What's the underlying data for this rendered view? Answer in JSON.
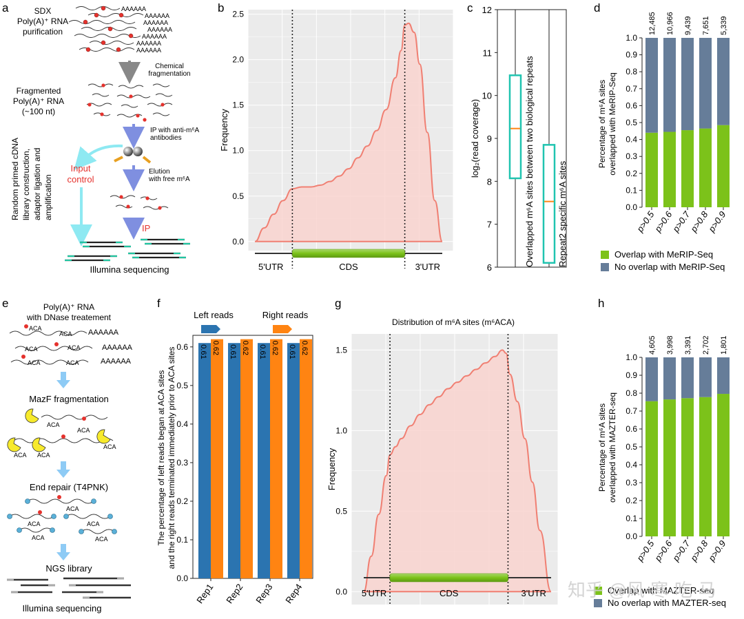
{
  "panel_letters": [
    "a",
    "b",
    "c",
    "d",
    "e",
    "f",
    "g",
    "h"
  ],
  "colors": {
    "green": "#7cc21a",
    "slate": "#667d99",
    "blue": "#2b74b0",
    "orange": "#ff8412",
    "salmon": "#f07f72",
    "salmon_fill": "#f9d4cf",
    "teal": "#20c4b0",
    "cyan": "#8ee9f2",
    "arrow_blue": "#7f8fe0",
    "arrow_gray": "#888888",
    "red_text": "#e5322d",
    "plot_bg": "#ebebeb"
  },
  "panel_a": {
    "title": [
      "SDX",
      "Poly(A)⁺ RNA",
      "purification"
    ],
    "polyA": "AAAAAA",
    "step_chem": [
      "Chemical",
      "fragmentation"
    ],
    "fragmented": [
      "Fragmented",
      "Poly(A)⁺ RNA",
      "(~100 nt)"
    ],
    "ip_step": [
      "IP with anti-m⁶A",
      "antibodies"
    ],
    "input_control": [
      "Input",
      "control"
    ],
    "elution": [
      "Elution",
      "with free m⁶A"
    ],
    "ip": "IP",
    "side_label": [
      "Random primed cDNA",
      "library construction,",
      "adaptor ligation and",
      "amplification"
    ],
    "illumina": "Illumina sequencing"
  },
  "panel_b": {
    "chart_data": {
      "type": "area",
      "ylabel": "Frequency",
      "yticks": [
        "0.0",
        "0.5",
        "1.0",
        "1.5",
        "2.0",
        "2.5"
      ],
      "ylim": [
        -0.1,
        2.55
      ],
      "region_labels": [
        "5'UTR",
        "CDS",
        "3'UTR"
      ],
      "boundaries": [
        0.2,
        0.8
      ],
      "x": [
        0.0,
        0.05,
        0.1,
        0.15,
        0.2,
        0.25,
        0.3,
        0.35,
        0.4,
        0.45,
        0.5,
        0.55,
        0.6,
        0.65,
        0.7,
        0.75,
        0.78,
        0.8,
        0.82,
        0.85,
        0.88,
        0.92,
        0.96,
        1.0
      ],
      "y": [
        0.0,
        0.15,
        0.3,
        0.45,
        0.58,
        0.6,
        0.6,
        0.62,
        0.66,
        0.72,
        0.8,
        0.92,
        1.05,
        1.22,
        1.45,
        1.8,
        2.1,
        2.38,
        2.4,
        2.3,
        1.95,
        1.2,
        0.45,
        0.0
      ]
    }
  },
  "panel_c": {
    "chart_data": {
      "type": "box",
      "ylabel": "log₂(read coverage)",
      "ylim": [
        6,
        12
      ],
      "yticks": [
        "6",
        "7",
        "8",
        "9",
        "10",
        "11",
        "12"
      ],
      "categories": [
        "Overlapped m⁶A sites between two biological repeats",
        "Repeat2 specific m⁶A sites"
      ],
      "boxes": [
        {
          "q1": 8.07,
          "median": 9.23,
          "q3": 10.47
        },
        {
          "q1": 6.1,
          "median": 7.53,
          "q3": 8.85
        }
      ]
    }
  },
  "panel_d": {
    "chart_data": {
      "type": "bar",
      "ylabel": [
        "Percentage of  m⁶A sites",
        "overlapped with MeRIP-Seq"
      ],
      "ylim": [
        0,
        1.0
      ],
      "yticks": [
        "0.0",
        "0.1",
        "0.2",
        "0.3",
        "0.4",
        "0.5",
        "0.6",
        "0.7",
        "0.8",
        "0.9",
        "1.0"
      ],
      "categories": [
        "p>0.5",
        "p>0.6",
        "p>0.7",
        "p>0.8",
        "p>0.9"
      ],
      "top_labels": [
        "12,485",
        "10,966",
        "9,439",
        "7,651",
        "5,339"
      ],
      "series": [
        {
          "name": "Overlap with MeRIP-Seq",
          "values": [
            0.44,
            0.445,
            0.455,
            0.465,
            0.485
          ]
        },
        {
          "name": "No overlap with MeRIP-Seq",
          "values": [
            0.56,
            0.555,
            0.545,
            0.535,
            0.515
          ]
        }
      ]
    }
  },
  "panel_e": {
    "title": [
      "Poly(A)⁺ RNA",
      "with DNase treatement"
    ],
    "polyA": "AAAAAA",
    "aca": "ACA",
    "step_mazf": "MazF fragmentation",
    "step_repair": "End repair (T4PNK)",
    "step_ngs": "NGS library",
    "illumina": "Illumina sequencing"
  },
  "panel_f": {
    "legend": [
      "Left reads",
      "Right reads"
    ],
    "chart_data": {
      "type": "bar",
      "ylabel": [
        "The percentage of left reads began at ACA sites",
        "and the right reads terminated immediately prior to ACA sites"
      ],
      "ylim": [
        0,
        0.63
      ],
      "yticks": [
        "0.0",
        "0.1",
        "0.2",
        "0.3",
        "0.4",
        "0.5",
        "0.6"
      ],
      "categories": [
        "Rep1",
        "Rep2",
        "Rep3",
        "Rep4"
      ],
      "series": [
        {
          "name": "Left reads",
          "values": [
            0.61,
            0.61,
            0.61,
            0.61
          ],
          "labels": [
            "0.61",
            "0.61",
            "0.61",
            "0.61"
          ]
        },
        {
          "name": "Right reads",
          "values": [
            0.62,
            0.62,
            0.62,
            0.62
          ],
          "labels": [
            "0.62",
            "0.62",
            "0.62",
            "0.62"
          ]
        }
      ]
    }
  },
  "panel_g": {
    "chart_data": {
      "type": "area",
      "title": "Distribution of m⁶A sites (m⁶ACA)",
      "ylabel": "Frequency",
      "yticks": [
        "0.0",
        "0.5",
        "1.0",
        "1.5"
      ],
      "ylim": [
        -0.08,
        1.6
      ],
      "region_labels": [
        "5'UTR",
        "CDS",
        "3'UTR"
      ],
      "boundaries": [
        0.14,
        0.77
      ],
      "x": [
        0.0,
        0.04,
        0.08,
        0.12,
        0.14,
        0.17,
        0.2,
        0.25,
        0.3,
        0.35,
        0.4,
        0.45,
        0.5,
        0.55,
        0.6,
        0.65,
        0.7,
        0.74,
        0.76,
        0.78,
        0.82,
        0.86,
        0.9,
        0.94,
        1.0
      ],
      "y": [
        0.0,
        0.22,
        0.48,
        0.72,
        0.85,
        0.9,
        0.95,
        1.03,
        1.1,
        1.16,
        1.21,
        1.26,
        1.3,
        1.34,
        1.38,
        1.42,
        1.46,
        1.5,
        1.48,
        1.35,
        1.18,
        0.95,
        0.68,
        0.38,
        0.0
      ]
    }
  },
  "panel_h": {
    "chart_data": {
      "type": "bar",
      "ylabel": [
        "Percentage of  m⁶A sites",
        "overlapped with MAZTER-seq"
      ],
      "ylim": [
        0,
        1.0
      ],
      "yticks": [
        "0.0",
        "0.1",
        "0.2",
        "0.3",
        "0.4",
        "0.5",
        "0.6",
        "0.7",
        "0.8",
        "0.9",
        "1.0"
      ],
      "categories": [
        "p>0.5",
        "p>0.6",
        "p>0.7",
        "p>0.8",
        "p>0.9"
      ],
      "top_labels": [
        "4,605",
        "3,998",
        "3,391",
        "2,702",
        "1,801"
      ],
      "series": [
        {
          "name": "Overlap with MAZTER-seq",
          "values": [
            0.755,
            0.765,
            0.772,
            0.778,
            0.796
          ]
        },
        {
          "name": "No overlap with MAZTER-seq",
          "values": [
            0.245,
            0.235,
            0.228,
            0.222,
            0.204
          ]
        }
      ]
    }
  },
  "watermark": "知乎 @风·寒·吃·马"
}
